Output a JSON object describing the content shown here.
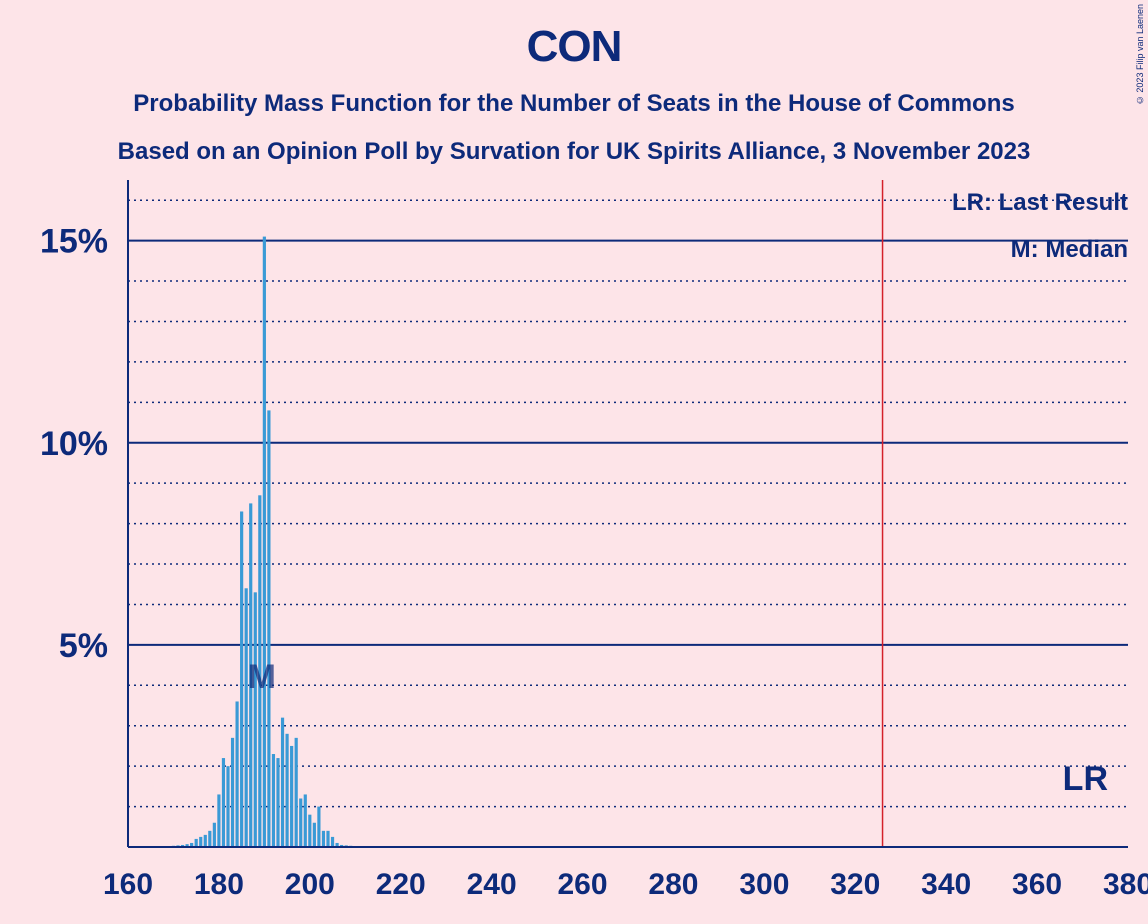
{
  "title": "CON",
  "subtitle1": "Probability Mass Function for the Number of Seats in the House of Commons",
  "subtitle2": "Based on an Opinion Poll by Survation for UK Spirits Alliance, 3 November 2023",
  "copyright": "© 2023 Filip van Laenen",
  "legend": {
    "last_result": "LR: Last Result",
    "median": "M: Median"
  },
  "colors": {
    "background": "#fde4e8",
    "text": "#0d2a7a",
    "bar": "#3a9ad6",
    "last_result_line": "#d4202a",
    "grid": "#0d2a7a"
  },
  "chart_data": {
    "type": "bar",
    "title": "CON",
    "xlabel": "",
    "ylabel": "",
    "xlim": [
      160,
      380
    ],
    "ylim": [
      0,
      16.5
    ],
    "x_ticks": [
      160,
      180,
      200,
      220,
      240,
      260,
      280,
      300,
      320,
      340,
      360,
      380
    ],
    "x_tick_labels": [
      "160",
      "180",
      "200",
      "220",
      "240",
      "260",
      "280",
      "300",
      "320",
      "340",
      "360",
      "380"
    ],
    "y_ticks": [
      5,
      10,
      15
    ],
    "y_tick_labels": [
      "5%",
      "10%",
      "15%"
    ],
    "grid": "major solid at 5% steps, dotted minor at 1% steps",
    "last_result": 326,
    "last_result_label": "LR",
    "median": 189,
    "median_label": "M",
    "series": [
      {
        "x": [
          168,
          169,
          170,
          171,
          172,
          173,
          174,
          175,
          176,
          177,
          178,
          179,
          180,
          181,
          182,
          183,
          184,
          185,
          186,
          187,
          188,
          189,
          190,
          191,
          192,
          193,
          194,
          195,
          196,
          197,
          198,
          199,
          200,
          201,
          202,
          203,
          204,
          205,
          206,
          207,
          208,
          209,
          210,
          211,
          212
        ],
        "values": [
          0.02,
          0.02,
          0.03,
          0.04,
          0.05,
          0.07,
          0.1,
          0.2,
          0.25,
          0.3,
          0.4,
          0.6,
          1.3,
          2.2,
          2.0,
          2.7,
          3.6,
          8.3,
          6.4,
          8.5,
          6.3,
          8.7,
          15.1,
          10.8,
          2.3,
          2.2,
          3.2,
          2.8,
          2.5,
          2.7,
          1.2,
          1.3,
          0.8,
          0.6,
          1.0,
          0.4,
          0.4,
          0.25,
          0.1,
          0.05,
          0.04,
          0.03,
          0.02,
          0.02,
          0.01
        ]
      }
    ]
  }
}
